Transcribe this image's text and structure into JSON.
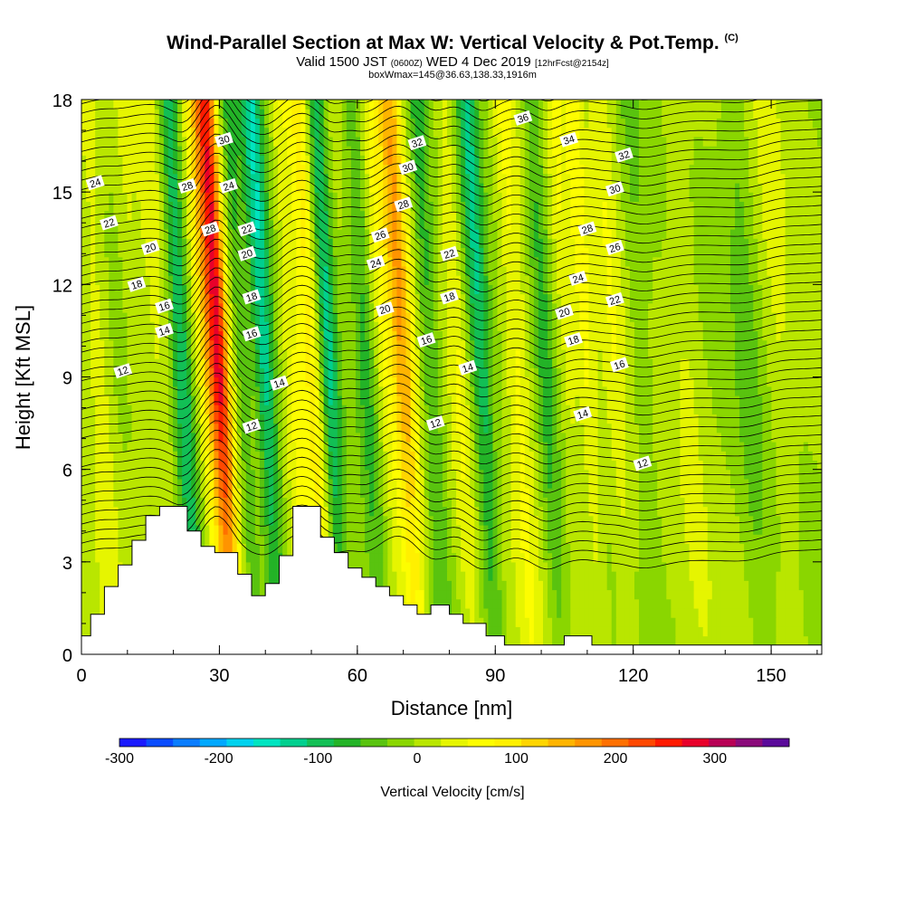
{
  "header": {
    "title": "Wind-Parallel Section at Max W: Vertical Velocity & Pot.Temp.",
    "title_suffix": "(C)",
    "valid_prefix": "Valid 1500 JST",
    "valid_utc": "(0600Z)",
    "valid_date": "WED 4 Dec 2019",
    "forecast": "[12hrFcst@2154z]",
    "box_info": "boxWmax=145@36.63,138.33,1916m"
  },
  "chart_data": {
    "type": "heatmap",
    "xlabel": "Distance [nm]",
    "ylabel": "Height [Kft MSL]",
    "xlim": [
      0,
      161
    ],
    "ylim": [
      0,
      18
    ],
    "x_ticks": [
      0,
      30,
      60,
      90,
      120,
      150
    ],
    "y_ticks": [
      0,
      3,
      6,
      9,
      12,
      15,
      18
    ],
    "colorbar": {
      "label": "Vertical Velocity [cm/s]",
      "range": [
        -300,
        375
      ],
      "tick_values": [
        -300,
        -200,
        -100,
        0,
        100,
        200,
        300
      ],
      "colors": [
        "#1a1aff",
        "#0a4cff",
        "#0a7dff",
        "#00a8ff",
        "#00d2ee",
        "#00e4c0",
        "#00cf8e",
        "#12bf55",
        "#23b327",
        "#59c30f",
        "#8ad600",
        "#b9e600",
        "#e6f500",
        "#fdfd00",
        "#fff000",
        "#ffd500",
        "#ffb400",
        "#ff9400",
        "#ff7000",
        "#ff4800",
        "#ff1a00",
        "#e8002a",
        "#b80055",
        "#8a0a7a",
        "#5a0a9a"
      ]
    },
    "terrain": [
      [
        0,
        0.6
      ],
      [
        2,
        0.6
      ],
      [
        2,
        1.3
      ],
      [
        5,
        1.3
      ],
      [
        5,
        2.2
      ],
      [
        8,
        2.2
      ],
      [
        8,
        2.9
      ],
      [
        11,
        2.9
      ],
      [
        11,
        3.7
      ],
      [
        14,
        3.7
      ],
      [
        14,
        4.5
      ],
      [
        17,
        4.5
      ],
      [
        17,
        4.8
      ],
      [
        23,
        4.8
      ],
      [
        23,
        4.0
      ],
      [
        26,
        4.0
      ],
      [
        26,
        3.5
      ],
      [
        29,
        3.5
      ],
      [
        29,
        3.3
      ],
      [
        34,
        3.3
      ],
      [
        34,
        2.6
      ],
      [
        37,
        2.6
      ],
      [
        37,
        1.9
      ],
      [
        40,
        1.9
      ],
      [
        40,
        2.3
      ],
      [
        43,
        2.3
      ],
      [
        43,
        3.2
      ],
      [
        46,
        3.2
      ],
      [
        46,
        4.8
      ],
      [
        52,
        4.8
      ],
      [
        52,
        3.8
      ],
      [
        55,
        3.8
      ],
      [
        55,
        3.3
      ],
      [
        58,
        3.3
      ],
      [
        58,
        2.8
      ],
      [
        61,
        2.8
      ],
      [
        61,
        2.5
      ],
      [
        64,
        2.5
      ],
      [
        64,
        2.2
      ],
      [
        67,
        2.2
      ],
      [
        67,
        1.9
      ],
      [
        70,
        1.9
      ],
      [
        70,
        1.6
      ],
      [
        73,
        1.6
      ],
      [
        73,
        1.3
      ],
      [
        76,
        1.3
      ],
      [
        76,
        1.6
      ],
      [
        80,
        1.6
      ],
      [
        80,
        1.3
      ],
      [
        83,
        1.3
      ],
      [
        83,
        1.0
      ],
      [
        88,
        1.0
      ],
      [
        88,
        0.6
      ],
      [
        92,
        0.6
      ],
      [
        92,
        0.3
      ],
      [
        105,
        0.3
      ],
      [
        105,
        0.6
      ],
      [
        111,
        0.6
      ],
      [
        111,
        0.3
      ],
      [
        161,
        0.3
      ]
    ],
    "updrafts": [
      {
        "x": 4,
        "amp": 40,
        "width": 2.5
      },
      {
        "x": 12,
        "amp": 25,
        "width": 2
      },
      {
        "x": 17,
        "amp": 35,
        "width": 2.5
      },
      {
        "x": 22,
        "amp": -110,
        "width": 2.2
      },
      {
        "x": 27,
        "amp": 70,
        "width": 2.0
      },
      {
        "x": 30,
        "amp": 260,
        "width": 2.3
      },
      {
        "x": 35,
        "amp": -60,
        "width": 2.0
      },
      {
        "x": 40,
        "amp": -130,
        "width": 2.3
      },
      {
        "x": 46,
        "amp": 50,
        "width": 2.0
      },
      {
        "x": 50,
        "amp": 95,
        "width": 2.4
      },
      {
        "x": 54,
        "amp": -110,
        "width": 2.0
      },
      {
        "x": 62,
        "amp": -60,
        "width": 2.2
      },
      {
        "x": 66,
        "amp": 45,
        "width": 2.2
      },
      {
        "x": 70,
        "amp": 150,
        "width": 2.6
      },
      {
        "x": 76,
        "amp": -70,
        "width": 2.2
      },
      {
        "x": 82,
        "amp": 45,
        "width": 2.0
      },
      {
        "x": 87,
        "amp": -105,
        "width": 2.3
      },
      {
        "x": 95,
        "amp": 65,
        "width": 2.6
      },
      {
        "x": 101,
        "amp": -60,
        "width": 2.0
      },
      {
        "x": 106,
        "amp": 40,
        "width": 2.0
      },
      {
        "x": 110,
        "amp": 55,
        "width": 2.0
      },
      {
        "x": 116,
        "amp": 40,
        "width": 2.5
      },
      {
        "x": 122,
        "amp": -30,
        "width": 2.5
      },
      {
        "x": 132,
        "amp": 25,
        "width": 3.0
      },
      {
        "x": 145,
        "amp": -35,
        "width": 3.0
      },
      {
        "x": 152,
        "amp": 25,
        "width": 3.0
      }
    ],
    "isentropes": [
      12,
      14,
      16,
      18,
      20,
      22,
      24,
      26,
      28,
      30,
      32,
      34,
      36
    ],
    "contour_labels": [
      {
        "text": "24",
        "x": 3,
        "y": 15.3
      },
      {
        "text": "22",
        "x": 6,
        "y": 14.0
      },
      {
        "text": "20",
        "x": 15,
        "y": 13.2
      },
      {
        "text": "18",
        "x": 12,
        "y": 12.0
      },
      {
        "text": "16",
        "x": 18,
        "y": 11.3
      },
      {
        "text": "14",
        "x": 18,
        "y": 10.5
      },
      {
        "text": "12",
        "x": 9,
        "y": 9.2
      },
      {
        "text": "30",
        "x": 31,
        "y": 16.7
      },
      {
        "text": "28",
        "x": 23,
        "y": 15.2
      },
      {
        "text": "24",
        "x": 32,
        "y": 15.2
      },
      {
        "text": "28",
        "x": 28,
        "y": 13.8
      },
      {
        "text": "22",
        "x": 36,
        "y": 13.8
      },
      {
        "text": "20",
        "x": 36,
        "y": 13.0
      },
      {
        "text": "18",
        "x": 37,
        "y": 11.6
      },
      {
        "text": "16",
        "x": 37,
        "y": 10.4
      },
      {
        "text": "14",
        "x": 43,
        "y": 8.8
      },
      {
        "text": "12",
        "x": 37,
        "y": 7.4
      },
      {
        "text": "32",
        "x": 73,
        "y": 16.6
      },
      {
        "text": "30",
        "x": 71,
        "y": 15.8
      },
      {
        "text": "28",
        "x": 70,
        "y": 14.6
      },
      {
        "text": "26",
        "x": 65,
        "y": 13.6
      },
      {
        "text": "24",
        "x": 64,
        "y": 12.7
      },
      {
        "text": "22",
        "x": 80,
        "y": 13.0
      },
      {
        "text": "20",
        "x": 66,
        "y": 11.2
      },
      {
        "text": "18",
        "x": 80,
        "y": 11.6
      },
      {
        "text": "16",
        "x": 75,
        "y": 10.2
      },
      {
        "text": "14",
        "x": 84,
        "y": 9.3
      },
      {
        "text": "12",
        "x": 77,
        "y": 7.5
      },
      {
        "text": "36",
        "x": 96,
        "y": 17.4
      },
      {
        "text": "34",
        "x": 106,
        "y": 16.7
      },
      {
        "text": "32",
        "x": 118,
        "y": 16.2
      },
      {
        "text": "30",
        "x": 116,
        "y": 15.1
      },
      {
        "text": "28",
        "x": 110,
        "y": 13.8
      },
      {
        "text": "26",
        "x": 116,
        "y": 13.2
      },
      {
        "text": "24",
        "x": 108,
        "y": 12.2
      },
      {
        "text": "22",
        "x": 116,
        "y": 11.5
      },
      {
        "text": "20",
        "x": 105,
        "y": 11.1
      },
      {
        "text": "18",
        "x": 107,
        "y": 10.2
      },
      {
        "text": "16",
        "x": 117,
        "y": 9.4
      },
      {
        "text": "14",
        "x": 109,
        "y": 7.8
      },
      {
        "text": "12",
        "x": 122,
        "y": 6.2
      }
    ]
  }
}
